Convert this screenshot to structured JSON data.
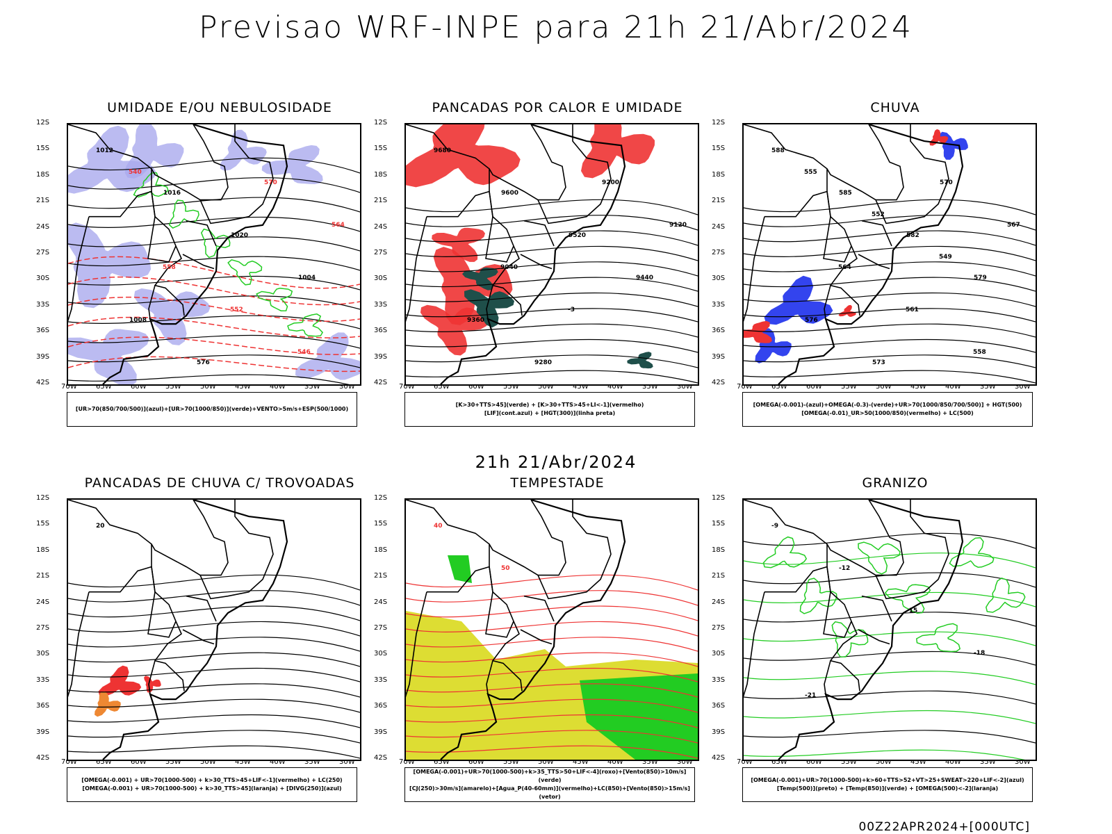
{
  "title": "Previsao WRF-INPE  para 21h 21/Abr/2024",
  "mid_title": "21h 21/Abr/2024",
  "footer": "00Z22APR2024+[000UTC]",
  "lat_labels": [
    "12S",
    "15S",
    "18S",
    "21S",
    "24S",
    "27S",
    "30S",
    "33S",
    "36S",
    "39S",
    "42S"
  ],
  "lon_labels": [
    "70W",
    "65W",
    "60W",
    "55W",
    "50W",
    "45W",
    "40W",
    "35W",
    "30W"
  ],
  "panels": [
    {
      "title": "UMIDADE E/OU NEBULOSIDADE",
      "legend": [
        "[UR>70(850/700/500)](azul)+[UR>70(1000/850)](verde)+VENTO>5m/s+ESP(500/1000)"
      ],
      "contour_labels": [
        "1012",
        "1016",
        "1020",
        "1004",
        "1008",
        "576",
        "570",
        "564",
        "558",
        "552",
        "546",
        "540"
      ]
    },
    {
      "title": "PANCADAS POR CALOR E UMIDADE",
      "legend": [
        "[K>30+TTS>45](verde) + [K>30+TTS>45+LI<-1](vermelho)",
        "[LIF](cont.azul) + [HGT(300)](linha preta)"
      ],
      "contour_labels": [
        "9680",
        "9600",
        "9520",
        "9440",
        "9360",
        "9280",
        "9200",
        "9120",
        "9040",
        "-3"
      ]
    },
    {
      "title": "CHUVA",
      "legend": [
        "[OMEGA(-0.001)-(azul)+OMEGA(-0.3)-(verde)+UR>70(1000/850/700/500)] + HGT(500)",
        "[OMEGA(-0.01)_UR>50(1000/850)(vermelho) + LC(500)"
      ],
      "contour_labels": [
        "588",
        "585",
        "582",
        "579",
        "576",
        "573",
        "570",
        "567",
        "564",
        "561",
        "558",
        "555",
        "552",
        "549"
      ]
    },
    {
      "title": "PANCADAS DE CHUVA C/ TROVOADAS",
      "legend": [
        "[OMEGA(-0.001) + UR>70(1000-500) + k>30_TTS>45+LIF<-1](vermelho) + LC(250)",
        "[OMEGA(-0.001) + UR>70(1000-500) + k>30_TTS>45](laranja) + [DIVG(250)](azul)"
      ],
      "contour_labels": [
        "20"
      ]
    },
    {
      "title": "TEMPESTADE",
      "legend": [
        "[OMEGA(-0.001)+UR>70(1000-500)+k>35_TTS>50+LIF<-4](roxo)+[Vento(850)>10m/s](verde)",
        "[CJ(250)>30m/s](amarelo)+[Agua_P(40-60mm)](vermelho)+LC(850)+[Vento(850)>15m/s](vetor)"
      ],
      "contour_labels": [
        "40",
        "50"
      ]
    },
    {
      "title": "GRANIZO",
      "legend": [
        "[OMEGA(-0.001)+UR>70(1000-500)+k>60+TTS>52+VT>25+SWEAT>220+LIF<-2](azul)",
        "[Temp(500)](preto) + [Temp(850)](verde) + [OMEGA(500)<-2](laranja)"
      ],
      "contour_labels": [
        "-9",
        "-12",
        "-15",
        "-18",
        "-21"
      ]
    }
  ],
  "colors": {
    "blue_humidity": "#aaaaee",
    "green_contour": "#22cc22",
    "red_contour": "#ee3333",
    "dark_teal": "#1f4f4a",
    "yellow": "#dddd33",
    "orange": "#ee8833",
    "blue_precip": "#3344ee"
  }
}
